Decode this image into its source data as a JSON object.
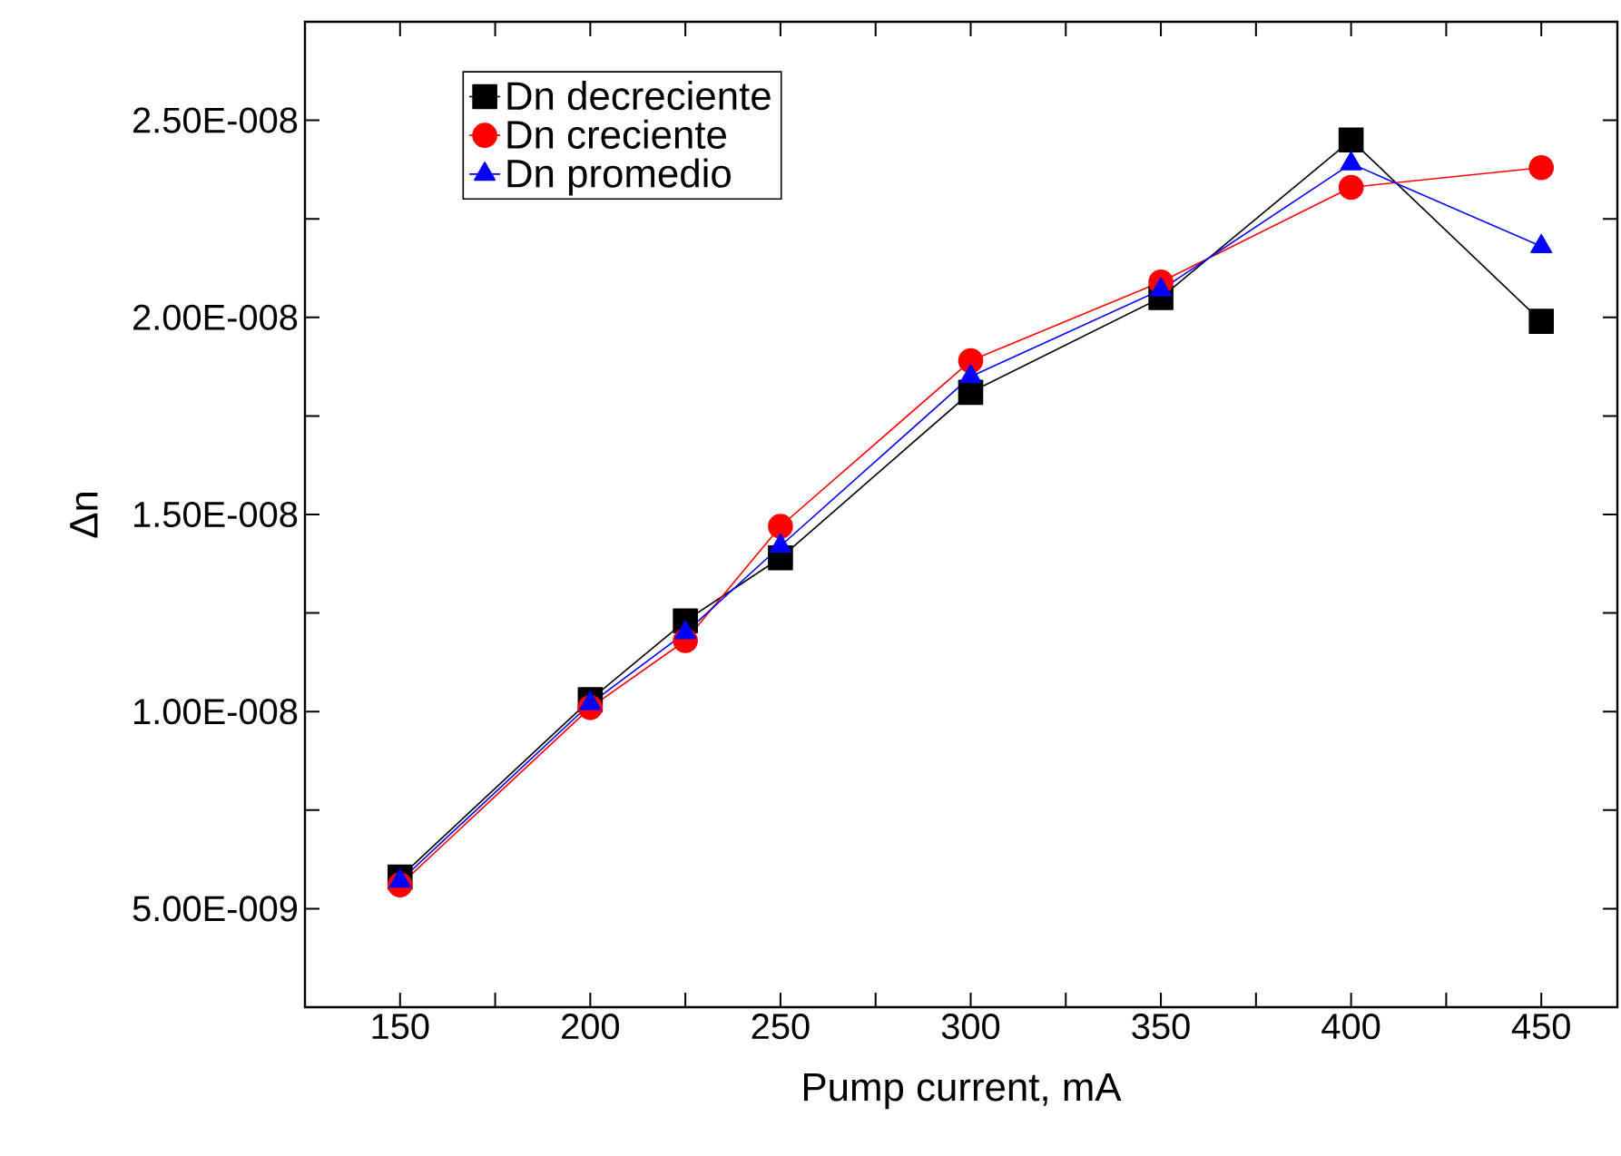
{
  "chart_data": {
    "type": "line",
    "xlabel": "Pump current,  mA",
    "ylabel": "Δn",
    "x": [
      150,
      200,
      225,
      250,
      300,
      350,
      400,
      450
    ],
    "series": [
      {
        "name": "Dn decreciente",
        "color": "#000000",
        "marker": "square",
        "values": [
          5.8e-09,
          1.03e-08,
          1.23e-08,
          1.39e-08,
          1.81e-08,
          2.05e-08,
          2.45e-08,
          1.99e-08
        ]
      },
      {
        "name": "Dn creciente",
        "color": "#ff0000",
        "marker": "circle",
        "values": [
          5.6e-09,
          1.01e-08,
          1.18e-08,
          1.47e-08,
          1.89e-08,
          2.09e-08,
          2.33e-08,
          2.38e-08
        ]
      },
      {
        "name": "Dn promedio",
        "color": "#0000ff",
        "marker": "triangle",
        "values": [
          5.7e-09,
          1.02e-08,
          1.2e-08,
          1.42e-08,
          1.85e-08,
          2.07e-08,
          2.39e-08,
          2.18e-08
        ]
      }
    ],
    "xlim": [
      125,
      470
    ],
    "xticks": [
      {
        "value": 125,
        "label": null
      },
      150,
      {
        "value": 175,
        "label": null
      },
      200,
      {
        "value": 225,
        "label": null
      },
      250,
      {
        "value": 275,
        "label": null
      },
      300,
      {
        "value": 325,
        "label": null
      },
      350,
      {
        "value": 375,
        "label": null
      },
      400,
      {
        "value": 425,
        "label": null
      },
      450
    ],
    "ylim": [
      2.5e-09,
      2.75e-08
    ],
    "yticks": [
      {
        "value": 5e-09,
        "label": "5.00E-009"
      },
      {
        "value": 7.5e-09,
        "label": null
      },
      {
        "value": 1e-08,
        "label": "1.00E-008"
      },
      {
        "value": 1.25e-08,
        "label": null
      },
      {
        "value": 1.5e-08,
        "label": "1.50E-008"
      },
      {
        "value": 1.75e-08,
        "label": null
      },
      {
        "value": 2e-08,
        "label": "2.00E-008"
      },
      {
        "value": 2.25e-08,
        "label": null
      },
      {
        "value": 2.5e-08,
        "label": "2.50E-008"
      }
    ],
    "legend": "top left",
    "line_style": "solid",
    "grid": false
  }
}
